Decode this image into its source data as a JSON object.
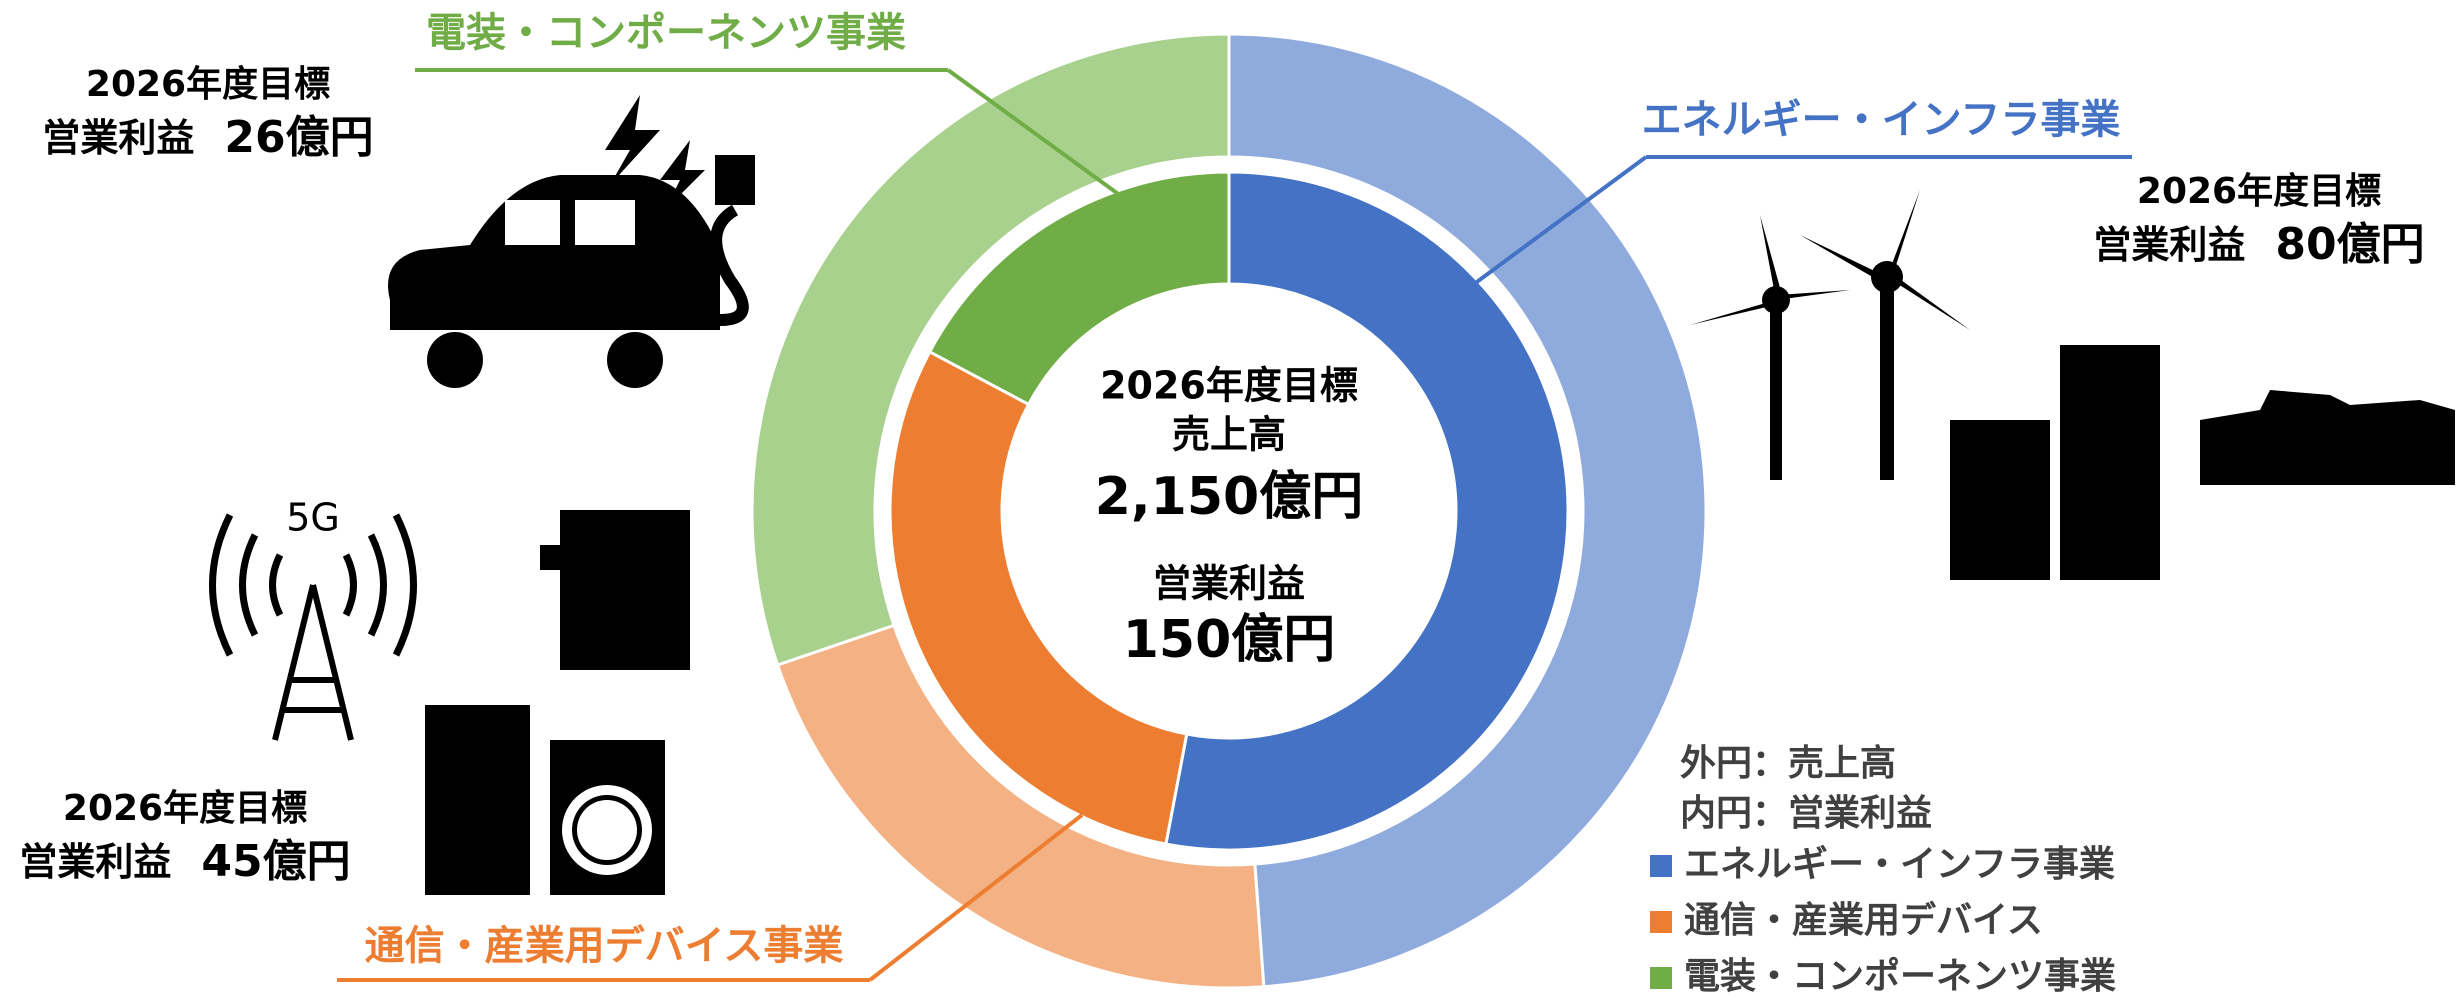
{
  "chart_data": {
    "type": "nested-donut",
    "categories": [
      "エネルギー・インフラ事業",
      "通信・産業用デバイス",
      "電装・コンポーネンツ事業"
    ],
    "callout_labels": [
      "エネルギー・インフラ事業",
      "通信・産業用デバイス事業",
      "電装・コンポーネンツ事業"
    ],
    "rings": [
      {
        "name": "売上高",
        "position": "outer",
        "colors": [
          "#8faadc",
          "#f4b183",
          "#a9d18e"
        ],
        "values": [
          1050,
          450,
          650
        ]
      },
      {
        "name": "営業利益",
        "position": "inner",
        "colors": [
          "#4472c4",
          "#ed7d31",
          "#70ad47"
        ],
        "values": [
          80,
          45,
          26
        ],
        "value_labels": [
          "80億円",
          "45億円",
          "26億円"
        ]
      }
    ],
    "annotation_heading": "2026年度目標",
    "annotation_metric": "営業利益",
    "center": {
      "heading": "2026年度目標",
      "revenue_label": "売上高",
      "revenue_total": {
        "value": 2150,
        "label": "2,150億円"
      },
      "profit_label": "営業利益",
      "profit_total": {
        "value": 150,
        "label": "150億円"
      }
    },
    "legend_notes": [
      "外円：売上高",
      "内円：営業利益"
    ]
  }
}
